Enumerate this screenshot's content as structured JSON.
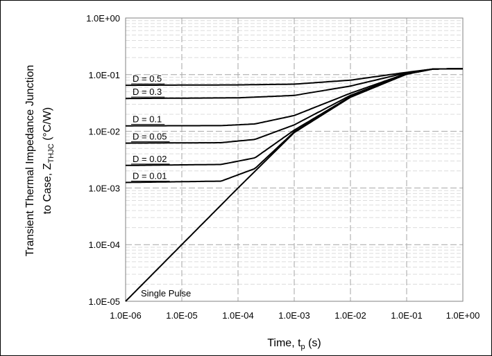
{
  "chart_data": {
    "type": "line",
    "x_scale": "log",
    "y_scale": "log",
    "xlim": [
      1e-06,
      1
    ],
    "ylim": [
      1e-05,
      1
    ],
    "grid": true,
    "x_ticks": [
      "1.0E-06",
      "1.0E-05",
      "1.0E-04",
      "1.0E-03",
      "1.0E-02",
      "1.0E-01",
      "1.0E+00"
    ],
    "y_ticks": [
      "1.0E-05",
      "1.0E-04",
      "1.0E-03",
      "1.0E-02",
      "1.0E-01",
      "1.0E+00"
    ],
    "xlabel": {
      "main": "Time, t",
      "sub": "p",
      "unit": " (s)"
    },
    "ylabel": {
      "line1": "Transient Thermal Impedance Junction",
      "line2_main": "to Case, Z",
      "line2_sub": "THJC",
      "line2_unit": " (°C/W)"
    },
    "series": [
      {
        "name": "D = 0.5",
        "x": [
          1e-06,
          0.0001,
          0.001,
          0.01,
          0.1,
          0.3,
          1
        ],
        "y": [
          0.065,
          0.066,
          0.068,
          0.08,
          0.11,
          0.126,
          0.127
        ]
      },
      {
        "name": "D = 0.3",
        "x": [
          1e-06,
          0.0001,
          0.001,
          0.01,
          0.1,
          0.3,
          1
        ],
        "y": [
          0.038,
          0.039,
          0.043,
          0.063,
          0.108,
          0.126,
          0.127
        ]
      },
      {
        "name": "D = 0.1",
        "x": [
          1e-06,
          5e-05,
          0.0002,
          0.001,
          0.01,
          0.1,
          0.3,
          1
        ],
        "y": [
          0.0125,
          0.0126,
          0.0135,
          0.019,
          0.047,
          0.105,
          0.126,
          0.127
        ]
      },
      {
        "name": "D = 0.05",
        "x": [
          1e-06,
          5e-05,
          0.0002,
          0.001,
          0.01,
          0.1,
          0.3,
          1
        ],
        "y": [
          0.0062,
          0.0063,
          0.0072,
          0.013,
          0.043,
          0.104,
          0.126,
          0.127
        ]
      },
      {
        "name": "D = 0.02",
        "x": [
          1e-06,
          5e-05,
          0.0002,
          0.001,
          0.01,
          0.1,
          0.3,
          1
        ],
        "y": [
          0.0025,
          0.0026,
          0.0034,
          0.0105,
          0.041,
          0.103,
          0.126,
          0.127
        ]
      },
      {
        "name": "D = 0.01",
        "x": [
          1e-06,
          5e-05,
          0.0002,
          0.001,
          0.01,
          0.1,
          0.3,
          1
        ],
        "y": [
          0.00125,
          0.00132,
          0.0022,
          0.0098,
          0.04,
          0.103,
          0.126,
          0.127
        ]
      },
      {
        "name": "Single Pulse",
        "x": [
          1e-06,
          1e-05,
          0.0001,
          0.001,
          0.01,
          0.1,
          0.3,
          1
        ],
        "y": [
          1e-05,
          0.0001,
          0.001,
          0.0095,
          0.04,
          0.102,
          0.126,
          0.127
        ]
      }
    ]
  }
}
